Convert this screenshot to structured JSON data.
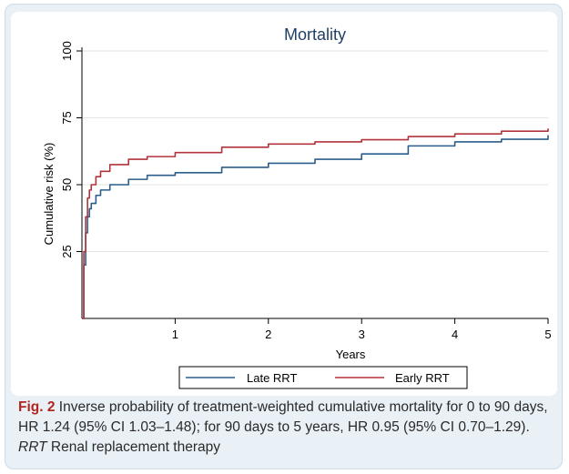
{
  "chart_data": {
    "type": "line",
    "title": "Mortality",
    "xlabel": "Years",
    "ylabel": "Cumulative risk (%)",
    "xlim": [
      0,
      5
    ],
    "ylim": [
      0,
      100
    ],
    "x_ticks": [
      1,
      2,
      3,
      4,
      5
    ],
    "y_ticks": [
      25,
      50,
      75,
      100
    ],
    "grid": "horizontal",
    "legend_position": "bottom",
    "series": [
      {
        "name": "Late RRT",
        "color": "#2a5d8c",
        "x": [
          0,
          0.02,
          0.04,
          0.06,
          0.08,
          0.1,
          0.15,
          0.2,
          0.3,
          0.5,
          0.7,
          1.0,
          1.5,
          2.0,
          2.5,
          3.0,
          3.5,
          4.0,
          4.5,
          5.0
        ],
        "y": [
          0,
          20,
          32,
          38,
          41,
          43,
          46,
          48,
          50,
          52,
          53.5,
          54.5,
          56.5,
          58,
          59.5,
          61.5,
          64.5,
          66,
          67,
          68.5
        ]
      },
      {
        "name": "Early RRT",
        "color": "#b3333b",
        "x": [
          0,
          0.02,
          0.04,
          0.06,
          0.08,
          0.1,
          0.15,
          0.2,
          0.3,
          0.5,
          0.7,
          1.0,
          1.5,
          2.0,
          2.5,
          3.0,
          3.5,
          4.0,
          4.5,
          5.0
        ],
        "y": [
          0,
          25,
          38,
          45,
          48,
          50,
          53,
          55,
          57.5,
          59.5,
          60.5,
          62,
          64,
          65.2,
          66,
          66.8,
          68,
          69,
          70,
          71
        ]
      }
    ]
  },
  "caption": {
    "label": "Fig. 2",
    "text": " Inverse probability of treatment-weighted cumulative mortality for 0 to 90 days, HR 1.24 (95% CI 1.03–1.48); for 90 days to 5 years, HR 0.95 (95% CI 0.70–1.29). ",
    "abbrev": "RRT",
    "abbrev_def": " Renal replacement therapy"
  }
}
